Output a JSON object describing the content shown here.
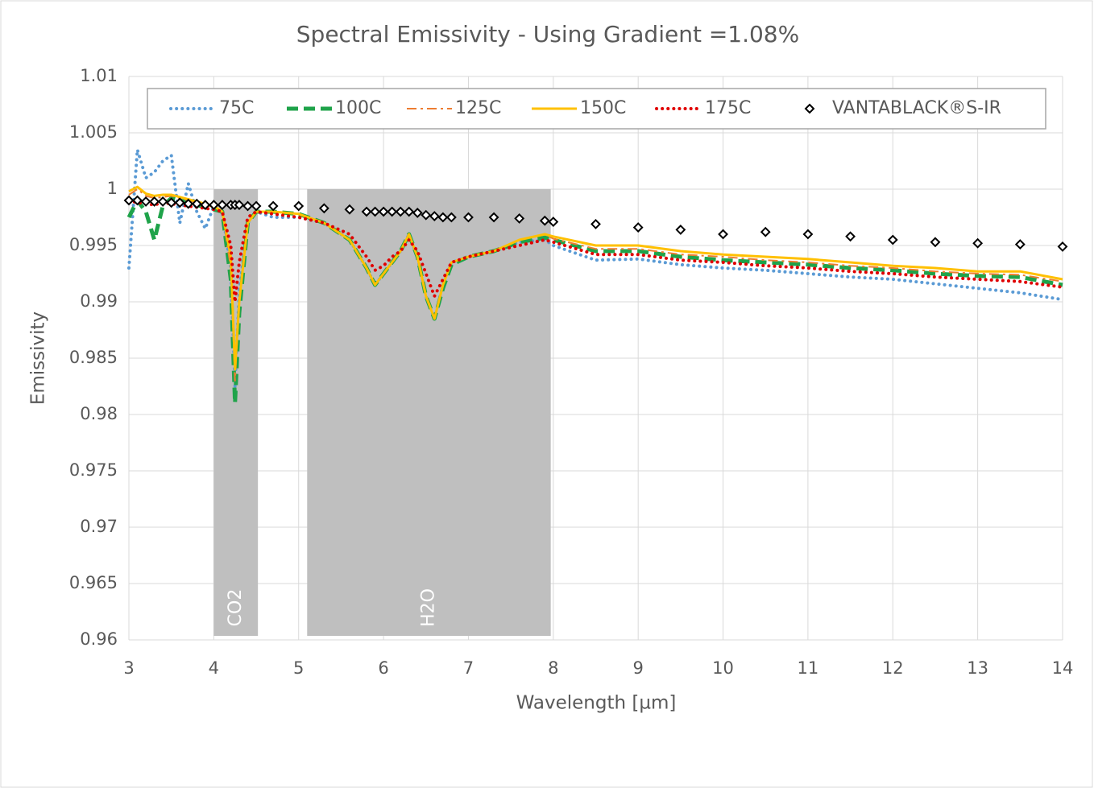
{
  "chart_data": {
    "type": "line",
    "title": "Spectral Emissivity - Using Gradient =1.08%",
    "x_label": "Wavelength [µm]",
    "y_label": "Emissivity",
    "x": [
      3.0,
      3.1,
      3.2,
      3.3,
      3.4,
      3.5,
      3.6,
      3.7,
      3.8,
      3.9,
      4.0,
      4.1,
      4.2,
      4.25,
      4.3,
      4.4,
      4.5,
      4.7,
      5.0,
      5.3,
      5.6,
      5.8,
      5.9,
      6.0,
      6.1,
      6.2,
      6.3,
      6.4,
      6.5,
      6.6,
      6.7,
      6.8,
      7.0,
      7.3,
      7.6,
      7.9,
      8.0,
      8.5,
      9.0,
      9.5,
      10,
      10.5,
      11,
      11.5,
      12,
      12.5,
      13,
      13.5,
      14
    ],
    "series": [
      {
        "name": "75C",
        "color": "#5b9bd5",
        "style": "dotted",
        "values": [
          0.993,
          1.0035,
          1.001,
          1.0015,
          1.0025,
          1.003,
          0.997,
          1.0005,
          0.998,
          0.9965,
          0.9985,
          0.998,
          0.993,
          0.9825,
          0.991,
          0.997,
          0.998,
          0.9975,
          0.9975,
          0.997,
          0.9955,
          0.993,
          0.9915,
          0.9925,
          0.9935,
          0.9945,
          0.996,
          0.994,
          0.9905,
          0.9885,
          0.9915,
          0.9935,
          0.994,
          0.9945,
          0.9953,
          0.9955,
          0.995,
          0.9937,
          0.9938,
          0.9933,
          0.993,
          0.9928,
          0.9925,
          0.9922,
          0.992,
          0.9916,
          0.9912,
          0.9908,
          0.9902
        ]
      },
      {
        "name": "100C",
        "color": "#1fa34a",
        "style": "dashed",
        "values": [
          0.9975,
          0.999,
          0.998,
          0.9955,
          0.9985,
          0.9992,
          0.999,
          0.9988,
          0.9986,
          0.9984,
          0.9982,
          0.998,
          0.992,
          0.981,
          0.989,
          0.997,
          0.998,
          0.998,
          0.9978,
          0.997,
          0.9955,
          0.993,
          0.9915,
          0.9925,
          0.9935,
          0.9945,
          0.996,
          0.994,
          0.9905,
          0.9885,
          0.9912,
          0.9933,
          0.994,
          0.9945,
          0.9953,
          0.9957,
          0.9955,
          0.9945,
          0.9945,
          0.994,
          0.9937,
          0.9935,
          0.9933,
          0.993,
          0.9928,
          0.9925,
          0.9923,
          0.9922,
          0.9915
        ]
      },
      {
        "name": "125C",
        "color": "#ed7d31",
        "style": "dash-dot",
        "values": [
          0.9995,
          1.0,
          0.9994,
          0.9992,
          0.9993,
          0.9994,
          0.9992,
          0.999,
          0.9988,
          0.9986,
          0.9984,
          0.998,
          0.993,
          0.983,
          0.99,
          0.997,
          0.998,
          0.998,
          0.9978,
          0.997,
          0.9955,
          0.993,
          0.9915,
          0.9925,
          0.9935,
          0.9945,
          0.996,
          0.994,
          0.9905,
          0.9885,
          0.9915,
          0.9935,
          0.994,
          0.9945,
          0.9955,
          0.996,
          0.9956,
          0.9947,
          0.9947,
          0.9942,
          0.994,
          0.9937,
          0.9935,
          0.9932,
          0.993,
          0.9927,
          0.9925,
          0.9924,
          0.9918
        ]
      },
      {
        "name": "150C",
        "color": "#ffc000",
        "style": "solid",
        "values": [
          0.9998,
          1.0002,
          0.9996,
          0.9994,
          0.9995,
          0.9995,
          0.9993,
          0.9991,
          0.9989,
          0.9987,
          0.9985,
          0.998,
          0.994,
          0.984,
          0.99,
          0.997,
          0.998,
          0.998,
          0.9978,
          0.997,
          0.9955,
          0.993,
          0.9915,
          0.9925,
          0.9935,
          0.9945,
          0.996,
          0.994,
          0.9905,
          0.9885,
          0.9915,
          0.9935,
          0.994,
          0.9945,
          0.9955,
          0.996,
          0.9958,
          0.995,
          0.995,
          0.9945,
          0.9942,
          0.994,
          0.9938,
          0.9935,
          0.9932,
          0.993,
          0.9927,
          0.9927,
          0.992
        ]
      },
      {
        "name": "175C",
        "color": "#e00000",
        "style": "dotted",
        "values": [
          0.999,
          0.9988,
          0.9987,
          0.9986,
          0.9988,
          0.9987,
          0.9986,
          0.9985,
          0.9984,
          0.9983,
          0.9982,
          0.998,
          0.995,
          0.99,
          0.9935,
          0.9975,
          0.998,
          0.9978,
          0.9975,
          0.997,
          0.996,
          0.994,
          0.9928,
          0.9932,
          0.994,
          0.9945,
          0.9955,
          0.9945,
          0.9925,
          0.9905,
          0.992,
          0.9935,
          0.994,
          0.9945,
          0.995,
          0.9955,
          0.9953,
          0.9942,
          0.9942,
          0.9937,
          0.9935,
          0.9932,
          0.993,
          0.9927,
          0.9925,
          0.9922,
          0.992,
          0.9918,
          0.9913
        ]
      },
      {
        "name": "VANTABLACK®S-IR",
        "color": "#000000",
        "style": "marker",
        "values": [
          0.999,
          0.999,
          0.9989,
          0.9989,
          0.9989,
          0.9988,
          0.9988,
          0.9987,
          0.9987,
          0.9986,
          0.9986,
          0.9986,
          0.9986,
          0.9986,
          0.9986,
          0.9985,
          0.9985,
          0.9985,
          0.9985,
          0.9983,
          0.9982,
          0.998,
          0.998,
          0.998,
          0.998,
          0.998,
          0.998,
          0.9979,
          0.9977,
          0.9976,
          0.9975,
          0.9975,
          0.9975,
          0.9975,
          0.9974,
          0.9972,
          0.9971,
          0.9969,
          0.9966,
          0.9964,
          0.996,
          0.9962,
          0.996,
          0.9958,
          0.9955,
          0.9953,
          0.9952,
          0.9951,
          0.9949
        ]
      }
    ],
    "bands": [
      {
        "label": "CO2",
        "xlim": [
          4,
          4.52
        ],
        "ylim": [
          0.96,
          1.0
        ],
        "color": "#bfbfbf"
      },
      {
        "label": "H2O",
        "xlim": [
          5.1,
          7.97
        ],
        "ylim": [
          0.96,
          1.0
        ],
        "color": "#bfbfbf"
      }
    ],
    "xlim": [
      3,
      14
    ],
    "xticks": [
      3,
      4,
      5,
      6,
      7,
      8,
      9,
      10,
      11,
      12,
      13,
      14
    ],
    "ylim": [
      0.96,
      1.01
    ],
    "yticks": [
      0.96,
      0.965,
      0.97,
      0.975,
      0.98,
      0.985,
      0.99,
      0.995,
      1,
      1.005,
      1.01
    ],
    "grid": true,
    "legend": "top"
  }
}
